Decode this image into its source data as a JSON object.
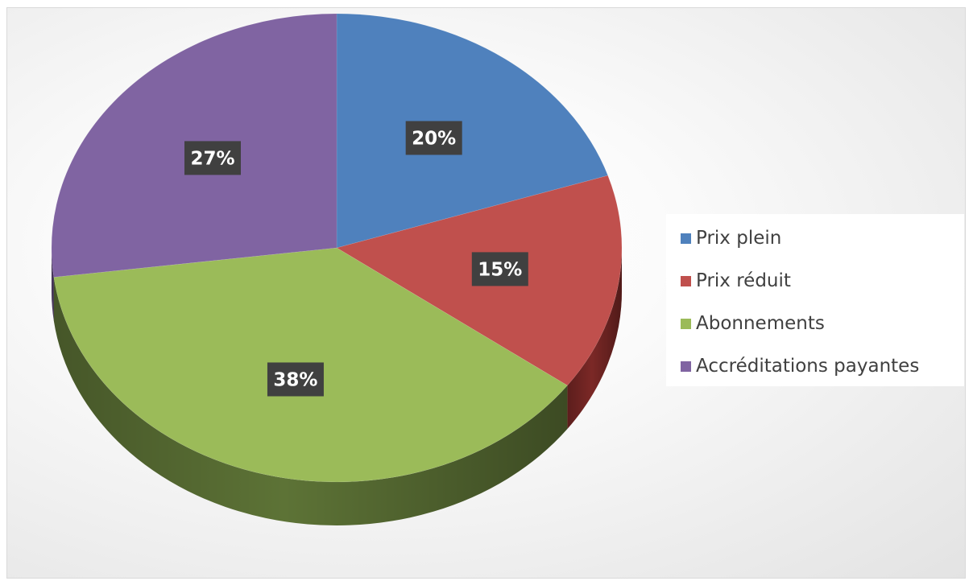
{
  "chart_data": {
    "type": "pie",
    "title": "",
    "categories": [
      "Prix plein",
      "Prix réduit",
      "Abonnements",
      "Accréditations payantes"
    ],
    "values": [
      20,
      15,
      38,
      27
    ],
    "data_labels": [
      "20%",
      "15%",
      "38%",
      "27%"
    ],
    "colors": [
      "#4f81bd",
      "#c0504d",
      "#9bbb59",
      "#8064a2"
    ],
    "side_colors": [
      "#2c4d75",
      "#7b2826",
      "#5d7336",
      "#4d3b63"
    ],
    "style": "3d",
    "legend": "right"
  }
}
